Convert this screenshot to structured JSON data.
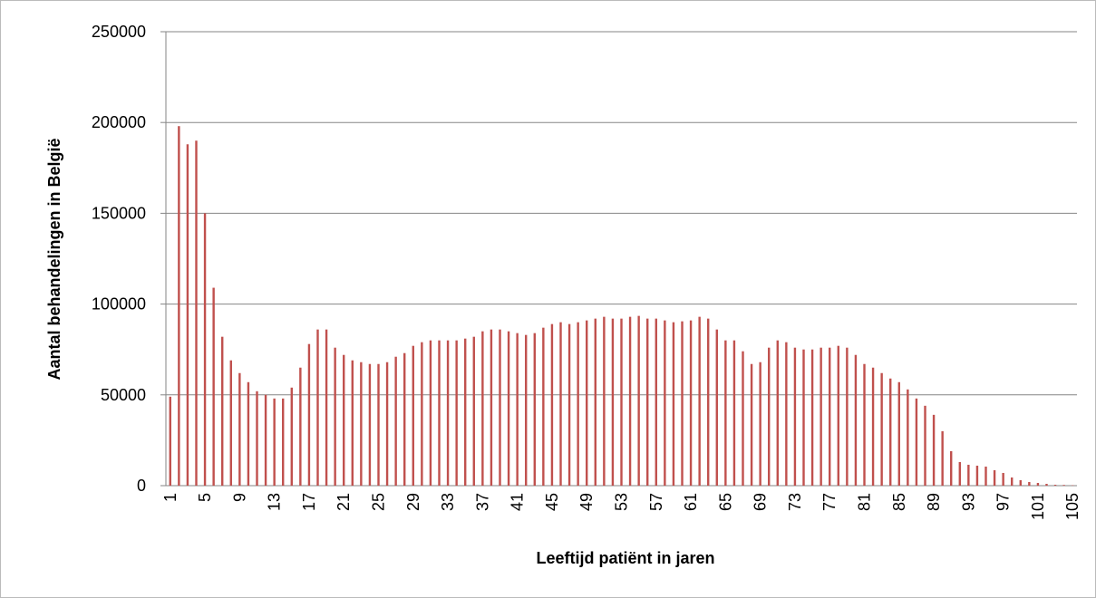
{
  "chart_data": {
    "type": "bar",
    "x_label": "Leeftijd patiënt in jaren",
    "y_label": "Aantal behandelingen in België",
    "categories": [
      "1",
      null,
      null,
      null,
      "5",
      null,
      null,
      null,
      "9",
      null,
      null,
      null,
      "13",
      null,
      null,
      null,
      "17",
      null,
      null,
      null,
      "21",
      null,
      null,
      null,
      "25",
      null,
      null,
      null,
      "29",
      null,
      null,
      null,
      "33",
      null,
      null,
      null,
      "37",
      null,
      null,
      null,
      "41",
      null,
      null,
      null,
      "45",
      null,
      null,
      null,
      "49",
      null,
      null,
      null,
      "53",
      null,
      null,
      null,
      "57",
      null,
      null,
      null,
      "61",
      null,
      null,
      null,
      "65",
      null,
      null,
      null,
      "69",
      null,
      null,
      null,
      "73",
      null,
      null,
      null,
      "77",
      null,
      null,
      null,
      "81",
      null,
      null,
      null,
      "85",
      null,
      null,
      null,
      "89",
      null,
      null,
      null,
      "93",
      null,
      null,
      null,
      "97",
      null,
      null,
      null,
      "101",
      null,
      null,
      null,
      "105"
    ],
    "values": [
      49000,
      198000,
      188000,
      190000,
      150000,
      109000,
      82000,
      69000,
      62000,
      57000,
      52000,
      50000,
      48000,
      48000,
      54000,
      65000,
      78000,
      86000,
      86000,
      76000,
      72000,
      69000,
      68000,
      67000,
      67000,
      68000,
      71000,
      73000,
      77000,
      79000,
      80000,
      80000,
      80000,
      80000,
      81000,
      82000,
      85000,
      86000,
      86000,
      85000,
      84000,
      83000,
      84000,
      87000,
      89000,
      90000,
      89000,
      90000,
      91000,
      92000,
      93000,
      92000,
      92000,
      93000,
      93500,
      92000,
      92000,
      91000,
      90000,
      90500,
      91000,
      93000,
      92000,
      86000,
      80000,
      80000,
      74000,
      67000,
      68000,
      76000,
      80000,
      79000,
      76000,
      75000,
      75000,
      76000,
      76000,
      77000,
      76000,
      72000,
      67000,
      65000,
      62000,
      59000,
      57000,
      53000,
      48000,
      44000,
      39000,
      30000,
      19000,
      13000,
      11500,
      11000,
      10500,
      8500,
      7000,
      4500,
      3000,
      2000,
      1500,
      1000,
      500,
      400,
      200
    ],
    "color": "#c0504d",
    "ylim": [
      0,
      250000
    ],
    "yticks": [
      0,
      50000,
      100000,
      150000,
      200000,
      250000
    ],
    "grid": true
  }
}
